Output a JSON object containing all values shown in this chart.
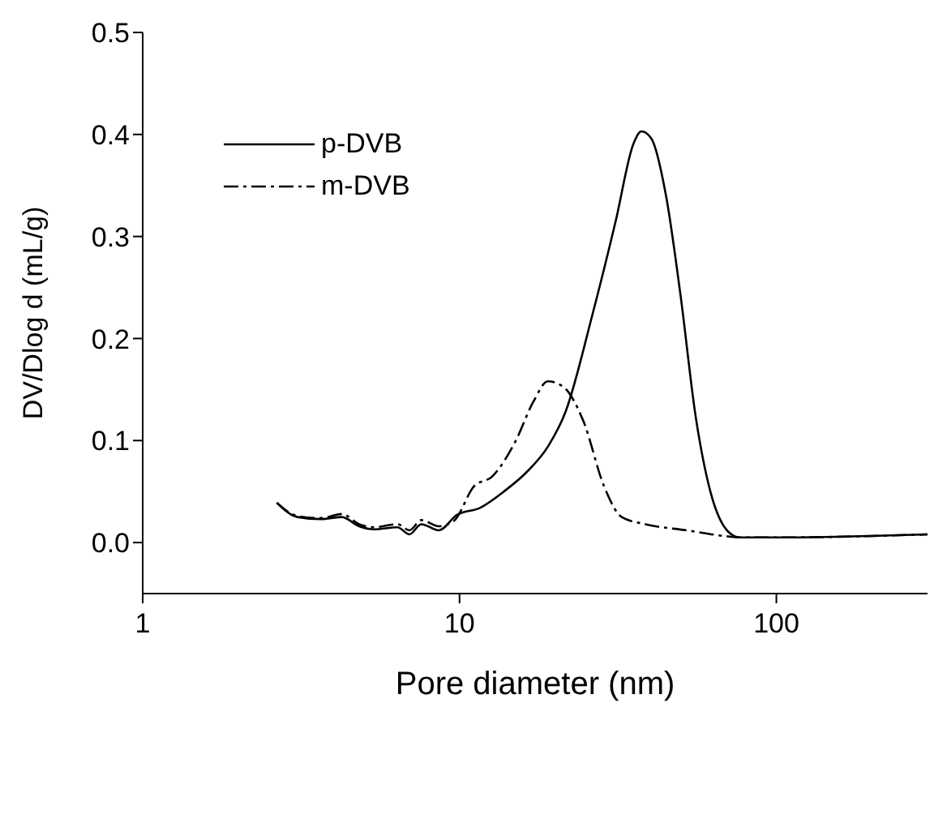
{
  "chart_data": {
    "type": "line",
    "xlabel": "Pore diameter (nm)",
    "ylabel": "DV/Dlog d (mL/g)",
    "log": "x",
    "xlim": [
      1,
      300
    ],
    "xticks": [
      1,
      10,
      100
    ],
    "ylim": [
      -0.05,
      0.5
    ],
    "yticks": [
      {
        "value": 0,
        "label": "0.0"
      },
      0.1,
      0.2,
      0.3,
      0.4,
      0.5
    ],
    "grid": false,
    "legend": "top left",
    "marker": "none",
    "series": [
      {
        "name": "p-DVB",
        "color": "#000000",
        "line_style": "solid",
        "x": [
          2.65,
          3.08,
          3.65,
          4.25,
          4.82,
          5.37,
          6.37,
          6.95,
          7.57,
          8.6,
          9.8,
          11.6,
          13.8,
          16.4,
          19.0,
          21.6,
          26.2,
          31.1,
          35.4,
          37.5,
          40.3,
          44.9,
          49.9,
          55.6,
          61.9,
          70.3,
          76.7,
          100,
          300
        ],
        "values": [
          0.039,
          0.025,
          0.023,
          0.025,
          0.016,
          0.013,
          0.015,
          0.008,
          0.018,
          0.012,
          0.027,
          0.034,
          0.05,
          0.07,
          0.094,
          0.128,
          0.222,
          0.315,
          0.391,
          0.403,
          0.396,
          0.339,
          0.241,
          0.124,
          0.05,
          0.011,
          0.005,
          0.005,
          0.008
        ]
      },
      {
        "name": "m-DVB",
        "color": "#000000",
        "line_style": "dashed",
        "x": [
          2.65,
          3.08,
          3.65,
          4.25,
          4.82,
          5.37,
          6.37,
          6.95,
          7.57,
          8.6,
          9.58,
          11.1,
          12.7,
          15.0,
          17.1,
          19.0,
          21.2,
          24.6,
          28.6,
          32.5,
          38.6,
          52.1,
          70.3,
          76.7,
          100,
          300
        ],
        "values": [
          0.039,
          0.026,
          0.024,
          0.028,
          0.018,
          0.015,
          0.018,
          0.012,
          0.022,
          0.016,
          0.021,
          0.055,
          0.065,
          0.099,
          0.138,
          0.158,
          0.153,
          0.119,
          0.055,
          0.025,
          0.018,
          0.012,
          0.006,
          0.005,
          0.005,
          0.008
        ]
      }
    ]
  }
}
